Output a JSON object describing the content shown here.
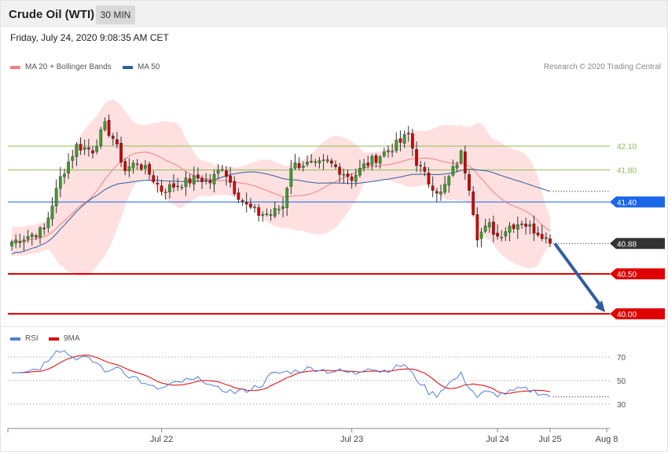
{
  "header": {
    "title": "Crude Oil (WTI)",
    "timeframe": "30 MIN"
  },
  "date_label": "Friday, July 24, 2020 9:08:35 AM CET",
  "copyright": "Research © 2020 Trading Central",
  "legend": {
    "items": [
      {
        "label": "MA 20 + Bollinger Bands",
        "color": "#f08080"
      },
      {
        "label": "MA 50",
        "color": "#2f5f9f"
      }
    ]
  },
  "rsi_legend": {
    "items": [
      {
        "label": "RSI",
        "color": "#4f7fd8"
      },
      {
        "label": "9MA",
        "color": "#e00000"
      }
    ]
  },
  "chart_data": [
    {
      "type": "candlestick",
      "ylim": [
        39.95,
        42.7
      ],
      "x_ticks": [
        "Jul 22",
        "Jul 23",
        "Jul 24",
        "Jul 25",
        "Aug 8"
      ],
      "levels": [
        {
          "value": 42.1,
          "label": "42.10",
          "color": "#8fbf4f",
          "kind": "resistance-thin"
        },
        {
          "value": 41.8,
          "label": "41.80",
          "color": "#8fbf4f",
          "kind": "resistance-thin"
        },
        {
          "value": 41.4,
          "label": "41.40",
          "color": "#1a66e8",
          "kind": "pivot"
        },
        {
          "value": 40.88,
          "label": "40.88",
          "color": "#333333",
          "kind": "last-price"
        },
        {
          "value": 40.5,
          "label": "40.50",
          "color": "#e00000",
          "kind": "support"
        },
        {
          "value": 40.0,
          "label": "40.00",
          "color": "#e00000",
          "kind": "support"
        }
      ],
      "forecast_arrow": {
        "from": 40.88,
        "to": 40.0,
        "color": "#2f5f9f"
      },
      "close_anchors": [
        [
          0,
          40.9
        ],
        [
          8,
          41.05
        ],
        [
          12,
          41.7
        ],
        [
          16,
          42.1
        ],
        [
          20,
          42.05
        ],
        [
          23,
          42.35
        ],
        [
          25,
          42.2
        ],
        [
          28,
          41.8
        ],
        [
          31,
          41.9
        ],
        [
          34,
          41.75
        ],
        [
          37,
          41.55
        ],
        [
          40,
          41.6
        ],
        [
          43,
          41.65
        ],
        [
          46,
          41.7
        ],
        [
          49,
          41.65
        ],
        [
          52,
          41.85
        ],
        [
          55,
          41.55
        ],
        [
          58,
          41.35
        ],
        [
          61,
          41.25
        ],
        [
          64,
          41.25
        ],
        [
          67,
          41.35
        ],
        [
          69,
          41.85
        ],
        [
          72,
          41.88
        ],
        [
          75,
          41.85
        ],
        [
          78,
          41.9
        ],
        [
          81,
          41.8
        ],
        [
          84,
          41.7
        ],
        [
          87,
          41.85
        ],
        [
          90,
          41.95
        ],
        [
          93,
          42.05
        ],
        [
          96,
          42.15
        ],
        [
          98,
          42.25
        ],
        [
          100,
          41.9
        ],
        [
          103,
          41.65
        ],
        [
          106,
          41.5
        ],
        [
          109,
          41.8
        ],
        [
          111,
          42.0
        ],
        [
          113,
          41.6
        ],
        [
          115,
          40.98
        ],
        [
          118,
          41.1
        ],
        [
          120,
          40.97
        ],
        [
          123,
          41.1
        ],
        [
          126,
          41.15
        ],
        [
          129,
          41.05
        ],
        [
          131,
          41.0
        ],
        [
          133,
          40.88
        ]
      ]
    },
    {
      "type": "line",
      "ylim": [
        20,
        80
      ],
      "y_ticks": [
        70,
        50,
        30
      ],
      "series": [
        {
          "name": "RSI"
        },
        {
          "name": "9MA"
        }
      ],
      "rsi_anchors": [
        [
          0,
          58
        ],
        [
          4,
          59
        ],
        [
          7,
          61
        ],
        [
          9,
          68
        ],
        [
          11,
          77
        ],
        [
          13,
          75
        ],
        [
          15,
          70
        ],
        [
          18,
          69
        ],
        [
          21,
          65
        ],
        [
          24,
          56
        ],
        [
          26,
          63
        ],
        [
          29,
          54
        ],
        [
          31,
          52
        ],
        [
          33,
          46
        ],
        [
          35,
          44
        ],
        [
          37,
          43
        ],
        [
          39,
          46
        ],
        [
          41,
          48
        ],
        [
          43,
          50
        ],
        [
          45,
          50
        ],
        [
          47,
          52
        ],
        [
          50,
          43
        ],
        [
          53,
          42
        ],
        [
          55,
          40
        ],
        [
          58,
          42
        ],
        [
          62,
          47
        ],
        [
          64,
          55
        ],
        [
          67,
          57
        ],
        [
          70,
          58
        ],
        [
          73,
          60
        ],
        [
          76,
          60
        ],
        [
          78,
          58
        ],
        [
          81,
          58
        ],
        [
          85,
          56
        ],
        [
          88,
          62
        ],
        [
          91,
          58
        ],
        [
          94,
          60
        ],
        [
          97,
          64
        ],
        [
          99,
          55
        ],
        [
          101,
          48
        ],
        [
          103,
          40
        ],
        [
          105,
          38
        ],
        [
          107,
          45
        ],
        [
          109,
          50
        ],
        [
          111,
          55
        ],
        [
          113,
          45
        ],
        [
          115,
          36
        ],
        [
          117,
          40
        ],
        [
          120,
          38
        ],
        [
          123,
          40
        ],
        [
          126,
          43
        ],
        [
          129,
          41
        ],
        [
          132,
          38
        ],
        [
          133,
          37
        ]
      ]
    }
  ]
}
